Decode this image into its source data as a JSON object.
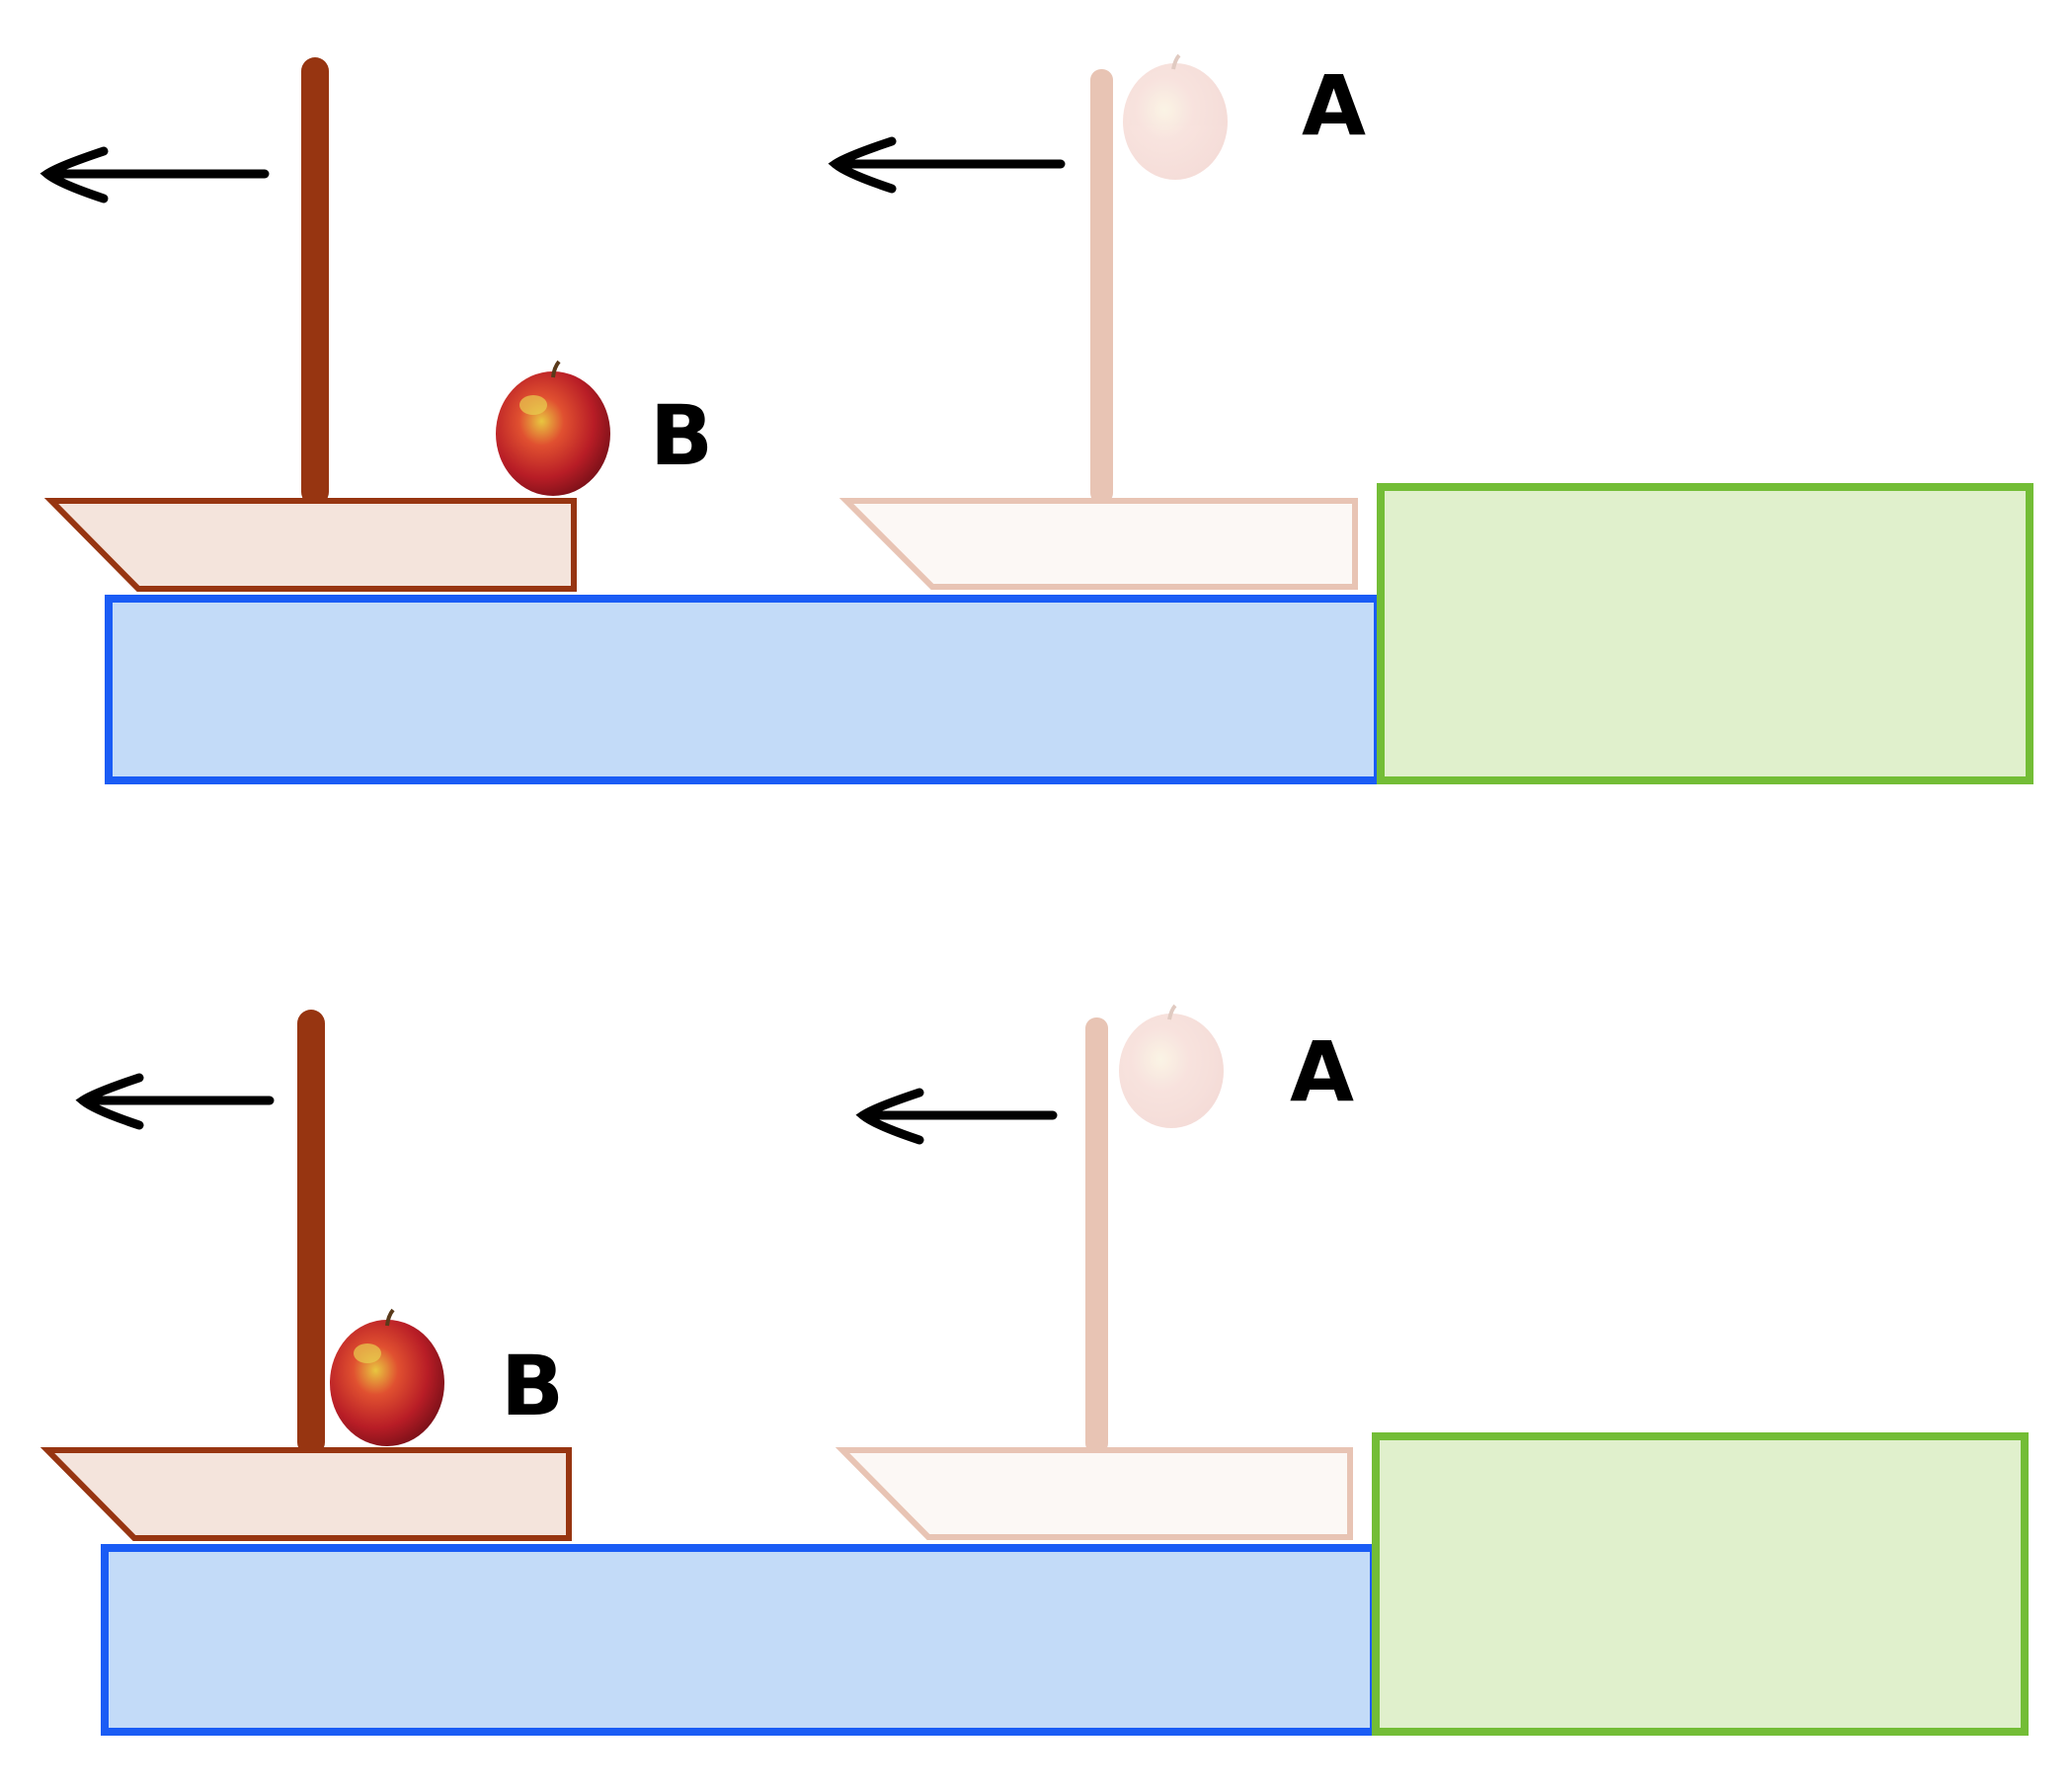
{
  "panels": [
    {
      "id": "top",
      "label_a": "A",
      "label_b": "B"
    },
    {
      "id": "bottom",
      "label_a": "A",
      "label_b": "B"
    }
  ],
  "colors": {
    "water_fill": "#c3dbf8",
    "water_stroke": "#1a5cf5",
    "land_fill": "#e0f0cc",
    "land_stroke": "#73bd36",
    "boat_fill": "#f4e4dc",
    "boat_stroke": "#973511",
    "ghost_fill": "#fcf8f5",
    "ghost_stroke": "#e8c4b4",
    "arrow": "#000000",
    "apple_red": "#c4202a",
    "apple_yellow": "#d9c23a"
  },
  "icons": [
    "left-arrow-icon",
    "apple-icon"
  ]
}
